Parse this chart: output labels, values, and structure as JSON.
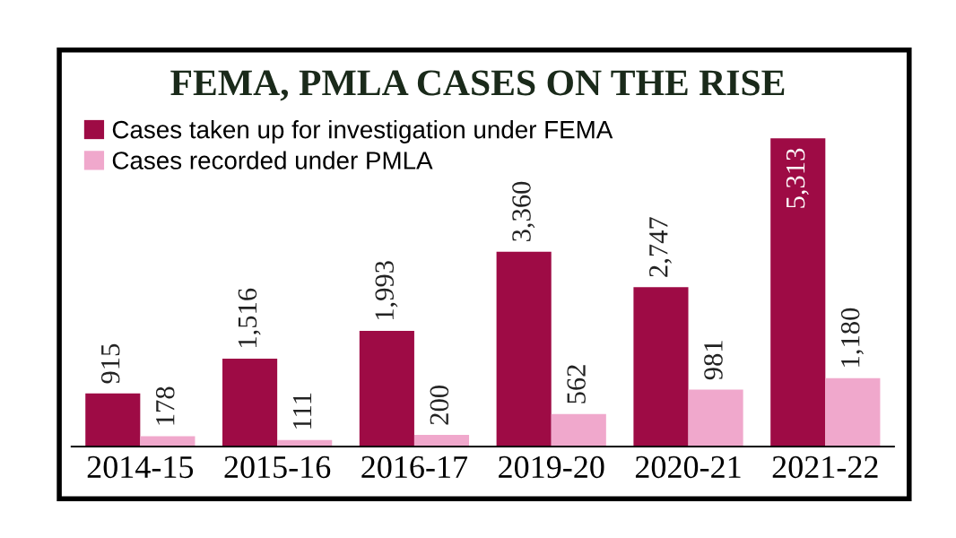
{
  "chart_data": {
    "type": "bar",
    "title": "FEMA, PMLA CASES ON THE RISE",
    "categories": [
      "2014-15",
      "2015-16",
      "2016-17",
      "2019-20",
      "2020-21",
      "2021-22"
    ],
    "series": [
      {
        "name": "Cases taken up for investigation under FEMA",
        "color": "#9e0b45",
        "values": [
          915,
          1516,
          1993,
          3360,
          2747,
          5313
        ],
        "value_labels": [
          "915",
          "1,516",
          "1,993",
          "3,360",
          "2,747",
          "5,313"
        ]
      },
      {
        "name": "Cases recorded under PMLA",
        "color": "#f0a8cc",
        "values": [
          178,
          111,
          200,
          562,
          981,
          1180
        ],
        "value_labels": [
          "178",
          "111",
          "200",
          "562",
          "981",
          "1,180"
        ]
      }
    ],
    "legend": "top left",
    "tick_labels": "x"
  }
}
